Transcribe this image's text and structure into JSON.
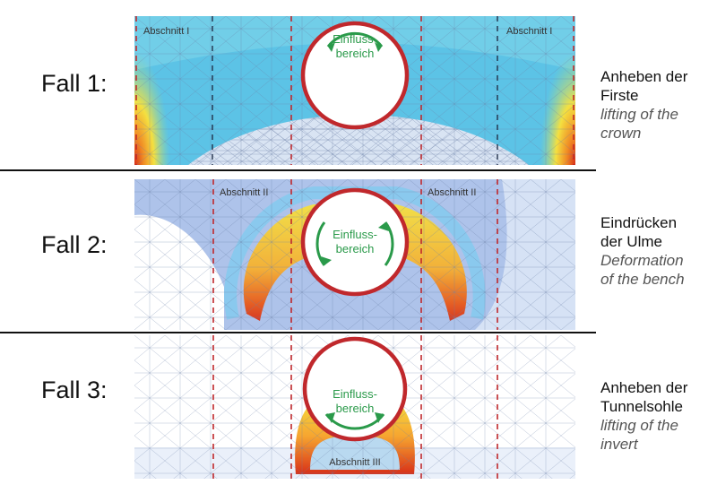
{
  "rows": [
    {
      "case": "Fall 1:",
      "de1": "Anheben der",
      "de2": "Firste",
      "en1": "lifting of the",
      "en2": "crown",
      "sections": [
        "Abschnitt I",
        "Abschnitt I"
      ]
    },
    {
      "case": "Fall 2:",
      "de1": "Eindrücken",
      "de2": "der Ulme",
      "en1": "Deformation",
      "en2": "of the bench",
      "sections": [
        "Abschnitt II",
        "Abschnitt II"
      ]
    },
    {
      "case": "Fall 3:",
      "de1": "Anheben der",
      "de2": "Tunnelsohle",
      "en1": "lifting of the",
      "en2": "invert",
      "sections": [
        "Abschnitt III"
      ]
    }
  ],
  "influence": {
    "line1": "Einfluss-",
    "line2": "bereich"
  },
  "colors": {
    "tunnel_ring": "#c0282c",
    "dashed_line": "#c0282c",
    "arrow": "#2a9a4a",
    "blue": "#5cc3e6",
    "yellow": "#f4e040",
    "red": "#d83018",
    "orange": "#f08a24"
  }
}
